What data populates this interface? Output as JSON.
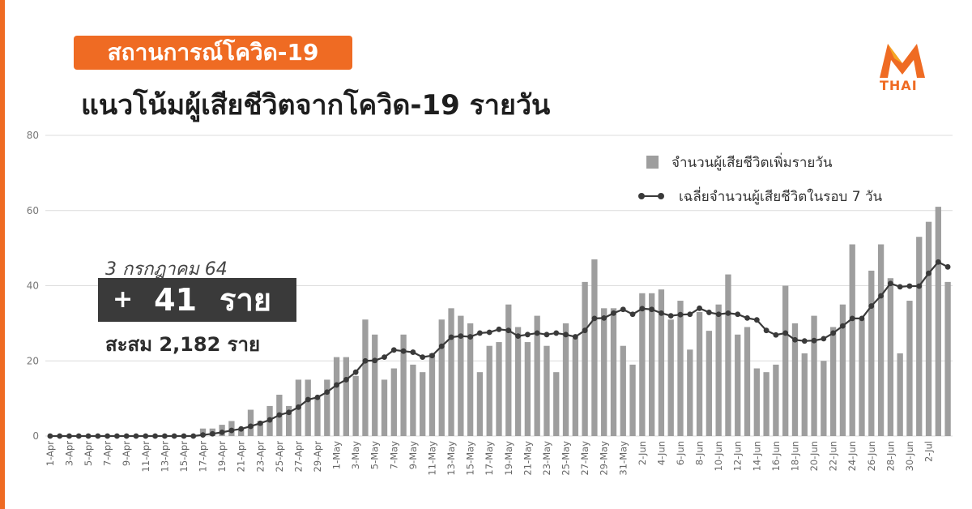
{
  "header": {
    "tag": "สถานการณ์โควิด-19",
    "title": "แนวโน้มผู้เสียชีวิตจากโควิด-19 รายวัน",
    "logo_text": "THAI"
  },
  "summary": {
    "date": "3 กรกฎาคม 64",
    "plus": "+",
    "today_value": "41",
    "today_unit": "ราย",
    "cumulative": "สะสม 2,182 ราย"
  },
  "colors": {
    "accent": "#ef6b23",
    "bar": "#9e9e9e",
    "line": "#3a3a3a"
  },
  "chart_data": {
    "type": "bar",
    "ylim": [
      0,
      80
    ],
    "yticks": [
      0,
      20,
      40,
      60,
      80
    ],
    "grid": true,
    "legend_position": "top-right",
    "legend": {
      "bars": "จำนวนผู้เสียชีวิตเพิ่มรายวัน",
      "line": "เฉลี่ยจำนวนผู้เสียชีวิตในรอบ 7 วัน"
    },
    "x_tick_labels": [
      "1-Apr",
      "3-Apr",
      "5-Apr",
      "7-Apr",
      "9-Apr",
      "11-Apr",
      "13-Apr",
      "15-Apr",
      "17-Apr",
      "19-Apr",
      "21-Apr",
      "23-Apr",
      "25-Apr",
      "27-Apr",
      "29-Apr",
      "1-May",
      "3-May",
      "5-May",
      "7-May",
      "9-May",
      "11-May",
      "13-May",
      "15-May",
      "17-May",
      "19-May",
      "21-May",
      "23-May",
      "25-May",
      "27-May",
      "29-May",
      "31-May",
      "2-Jun",
      "4-Jun",
      "6-Jun",
      "8-Jun",
      "10-Jun",
      "12-Jun",
      "14-Jun",
      "16-Jun",
      "18-Jun",
      "20-Jun",
      "22-Jun",
      "24-Jun",
      "26-Jun",
      "28-Jun",
      "30-Jun",
      "2-Jul"
    ],
    "daily": [
      0,
      0,
      0,
      0,
      0,
      0,
      0,
      0,
      0,
      0,
      0,
      0,
      0,
      0,
      0,
      0,
      2,
      2,
      3,
      4,
      2,
      7,
      4,
      8,
      11,
      8,
      15,
      15,
      10,
      15,
      21,
      21,
      16,
      31,
      27,
      15,
      18,
      27,
      19,
      17,
      22,
      31,
      34,
      32,
      30,
      17,
      24,
      25,
      35,
      29,
      25,
      32,
      24,
      17,
      30,
      26,
      41,
      47,
      34,
      34,
      24,
      19,
      38,
      38,
      39,
      31,
      36,
      23,
      33,
      28,
      35,
      43,
      27,
      29,
      18,
      17,
      19,
      40,
      30,
      22,
      32,
      20,
      29,
      35,
      51,
      31,
      44,
      51,
      42,
      22,
      36,
      53,
      57,
      61,
      41
    ],
    "avg7": [
      0,
      0,
      0,
      0,
      0,
      0,
      0,
      0,
      0,
      0,
      0,
      0,
      0,
      0,
      0,
      0,
      0.3,
      0.6,
      1,
      1.5,
      1.9,
      2.6,
      3.4,
      4.3,
      5.6,
      6.3,
      7.7,
      9.7,
      10.3,
      11.7,
      13.6,
      15,
      17,
      20,
      20.1,
      21,
      22.9,
      22.6,
      22.3,
      21,
      21.4,
      23.9,
      26.3,
      26.6,
      26.4,
      27.4,
      27.6,
      28.4,
      28.1,
      26.6,
      27,
      27.4,
      27,
      27.4,
      27,
      26.4,
      28.1,
      31.3,
      31.4,
      32.7,
      33.7,
      32.4,
      33.9,
      33.7,
      32.7,
      32,
      32.3,
      32.4,
      34,
      32.9,
      32.4,
      32.7,
      32.4,
      31.4,
      30.9,
      28.1,
      26.9,
      27.4,
      25.6,
      25.3,
      25.4,
      25.9,
      27.4,
      29.3,
      31.3,
      31.3,
      34.6,
      37.3,
      40.6,
      39.7,
      39.9,
      39.9,
      43.3,
      46.3,
      45
    ]
  }
}
